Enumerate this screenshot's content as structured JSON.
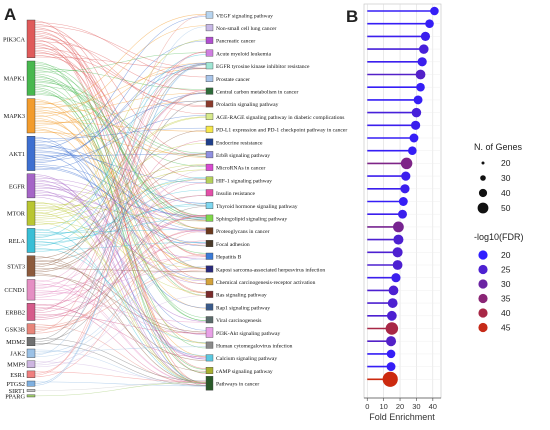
{
  "panel_a_label": "A",
  "panel_b_label": "B",
  "colors": {
    "fdr_low": "#2f1eff",
    "fdr_high": "#cc2a0f",
    "grid": "#dcdcdc",
    "stick": "#5a5a5a"
  },
  "chart_data": [
    {
      "type": "sankey",
      "genes": [
        {
          "name": "PIK3CA",
          "color": "#e05a5a",
          "links": 22
        },
        {
          "name": "MAPK1",
          "color": "#47b84e",
          "links": 20
        },
        {
          "name": "MAPK3",
          "color": "#f39c2c",
          "links": 20
        },
        {
          "name": "AKT1",
          "color": "#3d6fd1",
          "links": 20
        },
        {
          "name": "EGFR",
          "color": "#a564c7",
          "links": 14
        },
        {
          "name": "MTOR",
          "color": "#b9c631",
          "links": 14
        },
        {
          "name": "RELA",
          "color": "#38bfd6",
          "links": 14
        },
        {
          "name": "STAT3",
          "color": "#8c5a3c",
          "links": 12
        },
        {
          "name": "CCND1",
          "color": "#e58fc4",
          "links": 12
        },
        {
          "name": "ERBB2",
          "color": "#d65a8a",
          "links": 10
        },
        {
          "name": "GSK3B",
          "color": "#e8857a",
          "links": 6
        },
        {
          "name": "MDM2",
          "color": "#707070",
          "links": 5
        },
        {
          "name": "JAK2",
          "color": "#9bc1e6",
          "links": 5
        },
        {
          "name": "MMP9",
          "color": "#cdb5e0",
          "links": 4
        },
        {
          "name": "ESR1",
          "color": "#f07f7f",
          "links": 4
        },
        {
          "name": "PTGS2",
          "color": "#7fb0e0",
          "links": 3
        },
        {
          "name": "SIRT1",
          "color": "#c4c4c4",
          "links": 1
        },
        {
          "name": "PPARG",
          "color": "#9cc86a",
          "links": 1
        }
      ],
      "pathways": [
        {
          "name": "VEGF signaling pathway",
          "color": "#b7d4ef"
        },
        {
          "name": "Non-small cell lung cancer",
          "color": "#c7b8e6"
        },
        {
          "name": "Pancreatic cancer",
          "color": "#b14fd1"
        },
        {
          "name": "Acute myeloid leukemia",
          "color": "#cf7fe0"
        },
        {
          "name": "EGFR tyrosine kinase inhibitor resistance",
          "color": "#9fe6d4"
        },
        {
          "name": "Prostate cancer",
          "color": "#a9c5ea"
        },
        {
          "name": "Central carbon metabolism in cancer",
          "color": "#2e6b3a"
        },
        {
          "name": "Prolactin signaling pathway",
          "color": "#8a3a2c"
        },
        {
          "name": "AGE-RAGE signaling pathway in diabetic complications",
          "color": "#d7ea8c"
        },
        {
          "name": "PD-L1 expression and PD-1 checkpoint pathway in cancer",
          "color": "#f7e84a"
        },
        {
          "name": "Endocrine resistance",
          "color": "#1f3f8a"
        },
        {
          "name": "ErbB signaling pathway",
          "color": "#8f8fe0"
        },
        {
          "name": "MicroRNAs in cancer",
          "color": "#d84ad0"
        },
        {
          "name": "HIF-1 signaling pathway",
          "color": "#b5d05a"
        },
        {
          "name": "Insulin resistance",
          "color": "#e34fa8"
        },
        {
          "name": "Thyroid hormone signaling pathway",
          "color": "#7ed7f0"
        },
        {
          "name": "Sphingolipid signaling pathway",
          "color": "#7fd84a"
        },
        {
          "name": "Proteoglycans in cancer",
          "color": "#6b3a1e"
        },
        {
          "name": "Focal adhesion",
          "color": "#4a3a2a"
        },
        {
          "name": "Hepatitis B",
          "color": "#3a7ad6"
        },
        {
          "name": "Kaposi sarcoma-associated herpesvirus infection",
          "color": "#2a2a7a"
        },
        {
          "name": "Chemical carcinogenesis-receptor activation",
          "color": "#d4a23a"
        },
        {
          "name": "Ras signaling pathway",
          "color": "#7a2a2a"
        },
        {
          "name": "Rap1 signaling pathway",
          "color": "#3a5a8a"
        },
        {
          "name": "Viral carcinogenesis",
          "color": "#5a6a6a"
        },
        {
          "name": "PI3K-Akt signaling pathway",
          "color": "#e8a0e6"
        },
        {
          "name": "Human cytomegalovirus infection",
          "color": "#8a8a8a"
        },
        {
          "name": "Calcium signaling pathway",
          "color": "#5ac8e0"
        },
        {
          "name": "cAMP signaling pathway",
          "color": "#a8b030"
        },
        {
          "name": "Pathways in cancer",
          "color": "#2a5a2a"
        }
      ]
    },
    {
      "type": "scatter",
      "xlabel": "Fold Enrichment",
      "xlim": [
        -2,
        45
      ],
      "xticks": [
        0,
        10,
        20,
        30,
        40
      ],
      "categories": [
        "VEGF signaling pathway",
        "Non-small cell lung cancer",
        "Pancreatic cancer",
        "Acute myeloid leukemia",
        "EGFR tyrosine kinase inhibitor resistance",
        "Prostate cancer",
        "Central carbon metabolism in cancer",
        "Prolactin signaling pathway",
        "AGE-RAGE signaling pathway in diabetic complications",
        "PD-L1 expression and PD-1 checkpoint pathway in cancer",
        "Endocrine resistance",
        "ErbB signaling pathway",
        "MicroRNAs in cancer",
        "HIF-1 signaling pathway",
        "Insulin resistance",
        "Thyroid hormone signaling pathway",
        "Sphingolipid signaling pathway",
        "Proteoglycans in cancer",
        "Focal adhesion",
        "Hepatitis B",
        "Kaposi sarcoma-associated herpesvirus infection",
        "Chemical carcinogenesis-receptor activation",
        "Ras signaling pathway",
        "Rap1 signaling pathway",
        "Viral carcinogenesis",
        "PI3K-Akt signaling pathway",
        "Human cytomegalovirus infection",
        "Calcium signaling pathway",
        "cAMP signaling pathway",
        "Pathways in cancer"
      ],
      "fold_enrichment": [
        41,
        38,
        35.5,
        34.5,
        33.5,
        32.5,
        32.5,
        31,
        30,
        29.5,
        28.5,
        27.5,
        24,
        23.5,
        23,
        22,
        21.5,
        19,
        19,
        18.5,
        18.5,
        17.5,
        16,
        15.5,
        15,
        15,
        14.5,
        14.5,
        14.5,
        14
      ],
      "gene_count": [
        8,
        8,
        10,
        11,
        10,
        12,
        8,
        9,
        11,
        10,
        9,
        8,
        19,
        10,
        10,
        9,
        9,
        16,
        13,
        13,
        12,
        10,
        12,
        12,
        12,
        24,
        13,
        8,
        9,
        40
      ],
      "neg_log10_fdr": [
        21,
        21,
        22,
        24,
        22,
        26,
        21,
        21,
        24,
        22,
        21,
        21,
        33,
        22,
        22,
        21,
        22,
        32,
        25,
        25,
        25,
        22,
        25,
        25,
        25,
        40,
        26,
        21,
        21,
        46
      ],
      "size_legend": {
        "title": "N. of Genes",
        "values": [
          20,
          30,
          40,
          50
        ]
      },
      "color_legend": {
        "title": "-log10(FDR)",
        "values": [
          20,
          25,
          30,
          35,
          40,
          45
        ]
      }
    }
  ]
}
